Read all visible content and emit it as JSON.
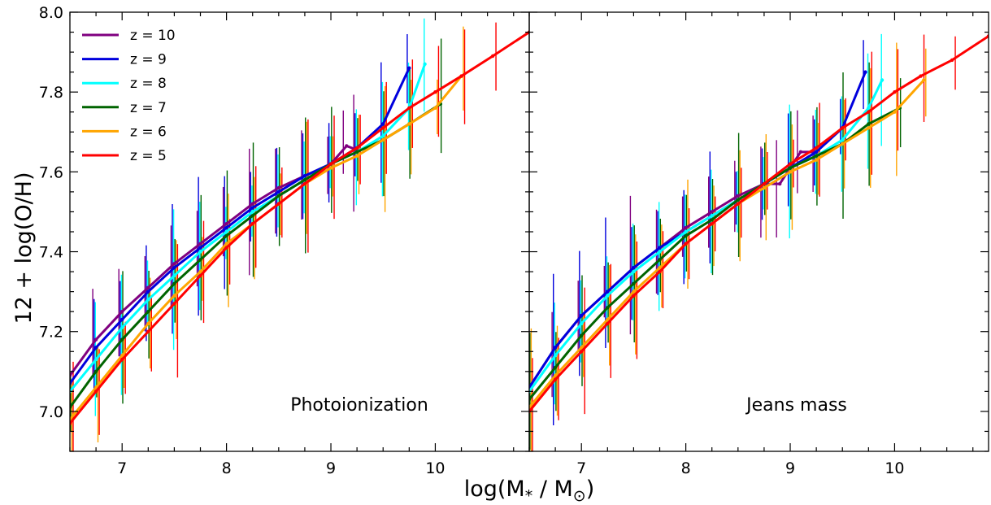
{
  "chart_data": {
    "type": "line",
    "ylabel": "12 + log(O/H)",
    "xlabel_main": "log(M",
    "xlabel_sub": "*",
    "xlabel_rest": " / M",
    "xlabel_sun": "⊙",
    "xlabel_close": ")",
    "ylim": [
      6.9,
      8.0
    ],
    "xlim": [
      6.5,
      10.9
    ],
    "yticks": [
      7.0,
      7.2,
      7.4,
      7.6,
      7.8,
      8.0
    ],
    "ytick_labels": [
      "7.0",
      "7.2",
      "7.4",
      "7.6",
      "7.8",
      "8.0"
    ],
    "xticks": [
      7,
      8,
      9,
      10
    ],
    "xtick_labels": [
      "7",
      "8",
      "9",
      "10"
    ],
    "grid": false,
    "legend_position": "top-left",
    "colors": {
      "z10": "#800080",
      "z9": "#0000dd",
      "z8": "#00ffff",
      "z7": "#006400",
      "z6": "#ffa500",
      "z5": "#ff0000"
    },
    "legend": [
      {
        "key": "z10",
        "label": "z = 10"
      },
      {
        "key": "z9",
        "label": "z = 9"
      },
      {
        "key": "z8",
        "label": "z = 8"
      },
      {
        "key": "z7",
        "label": "z = 7"
      },
      {
        "key": "z6",
        "label": "z = 6"
      },
      {
        "key": "z5",
        "label": "z = 5"
      }
    ],
    "panels": [
      {
        "annotation": "Photoionization",
        "series": [
          {
            "key": "z10",
            "x": [
              6.5,
              6.75,
              7.0,
              7.25,
              7.5,
              7.75,
              8.0,
              8.25,
              8.5,
              8.75,
              9.0,
              9.15,
              9.25
            ],
            "y": [
              7.09,
              7.18,
              7.25,
              7.31,
              7.37,
              7.42,
              7.47,
              7.52,
              7.56,
              7.59,
              7.62,
              7.665,
              7.655
            ]
          },
          {
            "key": "z9",
            "x": [
              6.5,
              6.75,
              7.0,
              7.25,
              7.5,
              7.75,
              8.0,
              8.25,
              8.5,
              8.75,
              9.0,
              9.25,
              9.5,
              9.75
            ],
            "y": [
              7.07,
              7.16,
              7.23,
              7.3,
              7.36,
              7.41,
              7.46,
              7.51,
              7.55,
              7.59,
              7.62,
              7.66,
              7.72,
              7.86
            ]
          },
          {
            "key": "z8",
            "x": [
              6.5,
              6.75,
              7.0,
              7.25,
              7.5,
              7.75,
              8.0,
              8.25,
              8.5,
              8.75,
              9.0,
              9.25,
              9.5,
              9.75,
              9.9
            ],
            "y": [
              7.05,
              7.13,
              7.21,
              7.28,
              7.34,
              7.4,
              7.45,
              7.5,
              7.54,
              7.58,
              7.62,
              7.65,
              7.69,
              7.76,
              7.87
            ]
          },
          {
            "key": "z7",
            "x": [
              6.5,
              6.75,
              7.0,
              7.25,
              7.5,
              7.75,
              8.0,
              8.25,
              8.5,
              8.75,
              9.0,
              9.25,
              9.5,
              9.75,
              10.05
            ],
            "y": [
              7.01,
              7.1,
              7.18,
              7.25,
              7.32,
              7.38,
              7.44,
              7.49,
              7.54,
              7.58,
              7.62,
              7.65,
              7.68,
              7.72,
              7.77
            ]
          },
          {
            "key": "z6",
            "x": [
              6.5,
              6.75,
              7.0,
              7.25,
              7.5,
              7.75,
              8.0,
              8.25,
              8.5,
              8.75,
              9.0,
              9.25,
              9.5,
              9.75,
              10.0,
              10.25
            ],
            "y": [
              6.98,
              7.06,
              7.14,
              7.22,
              7.29,
              7.35,
              7.42,
              7.47,
              7.52,
              7.57,
              7.61,
              7.64,
              7.68,
              7.72,
              7.76,
              7.84
            ]
          },
          {
            "key": "z5",
            "x": [
              6.5,
              6.75,
              7.0,
              7.25,
              7.5,
              7.75,
              8.0,
              8.25,
              8.5,
              8.75,
              9.0,
              9.25,
              9.5,
              9.75,
              10.0,
              10.25,
              10.55,
              10.9
            ],
            "y": [
              6.97,
              7.05,
              7.13,
              7.2,
              7.27,
              7.34,
              7.41,
              7.47,
              7.52,
              7.57,
              7.62,
              7.66,
              7.71,
              7.76,
              7.8,
              7.84,
              7.89,
              7.95
            ]
          }
        ]
      },
      {
        "annotation": "Jeans mass",
        "series": [
          {
            "key": "z10",
            "x": [
              6.5,
              6.75,
              7.0,
              7.25,
              7.5,
              7.75,
              8.0,
              8.25,
              8.5,
              8.75,
              8.9,
              9.1,
              9.25
            ],
            "y": [
              7.06,
              7.16,
              7.24,
              7.3,
              7.36,
              7.41,
              7.46,
              7.5,
              7.54,
              7.57,
              7.57,
              7.65,
              7.65
            ]
          },
          {
            "key": "z9",
            "x": [
              6.5,
              6.75,
              7.0,
              7.25,
              7.5,
              7.75,
              8.0,
              8.25,
              8.5,
              8.75,
              9.0,
              9.25,
              9.5,
              9.72
            ],
            "y": [
              7.06,
              7.16,
              7.24,
              7.3,
              7.36,
              7.41,
              7.45,
              7.49,
              7.53,
              7.57,
              7.61,
              7.65,
              7.71,
              7.85
            ]
          },
          {
            "key": "z8",
            "x": [
              6.5,
              6.75,
              7.0,
              7.25,
              7.5,
              7.75,
              8.0,
              8.25,
              8.5,
              8.75,
              9.0,
              9.25,
              9.5,
              9.75,
              9.88
            ],
            "y": [
              7.05,
              7.14,
              7.22,
              7.29,
              7.35,
              7.4,
              7.45,
              7.49,
              7.53,
              7.57,
              7.61,
              7.64,
              7.68,
              7.76,
              7.83
            ]
          },
          {
            "key": "z7",
            "x": [
              6.5,
              6.75,
              7.0,
              7.25,
              7.5,
              7.75,
              8.0,
              8.25,
              8.5,
              8.75,
              9.0,
              9.25,
              9.5,
              9.75,
              10.05
            ],
            "y": [
              7.03,
              7.11,
              7.19,
              7.26,
              7.32,
              7.38,
              7.44,
              7.48,
              7.53,
              7.57,
              7.61,
              7.64,
              7.67,
              7.72,
              7.76
            ]
          },
          {
            "key": "z6",
            "x": [
              6.5,
              6.75,
              7.0,
              7.25,
              7.5,
              7.75,
              8.0,
              8.25,
              8.5,
              8.75,
              9.0,
              9.25,
              9.5,
              9.75,
              10.0,
              10.28
            ],
            "y": [
              7.01,
              7.09,
              7.16,
              7.23,
              7.3,
              7.36,
              7.42,
              7.47,
              7.52,
              7.56,
              7.6,
              7.63,
              7.67,
              7.71,
              7.75,
              7.83
            ]
          },
          {
            "key": "z5",
            "x": [
              6.5,
              6.75,
              7.0,
              7.25,
              7.5,
              7.75,
              8.0,
              8.25,
              8.5,
              8.75,
              9.0,
              9.25,
              9.5,
              9.75,
              10.0,
              10.25,
              10.55,
              10.9
            ],
            "y": [
              7.0,
              7.08,
              7.15,
              7.22,
              7.29,
              7.35,
              7.42,
              7.47,
              7.52,
              7.57,
              7.62,
              7.66,
              7.71,
              7.75,
              7.8,
              7.84,
              7.88,
              7.94
            ]
          }
        ]
      }
    ]
  }
}
